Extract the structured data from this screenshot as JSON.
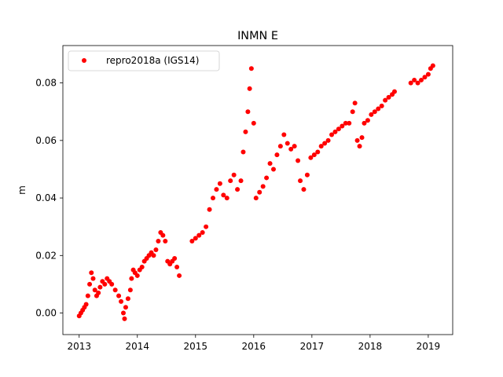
{
  "chart_data": {
    "type": "scatter",
    "title": "INMN E",
    "xlabel": "",
    "ylabel": "m",
    "xlim": [
      2012.72,
      2019.42
    ],
    "ylim": [
      -0.0075,
      0.093
    ],
    "x_ticks": [
      2013,
      2014,
      2015,
      2016,
      2017,
      2018,
      2019
    ],
    "x_tick_labels": [
      "2013",
      "2014",
      "2015",
      "2016",
      "2017",
      "2018",
      "2019"
    ],
    "y_ticks": [
      0.0,
      0.02,
      0.04,
      0.06,
      0.08
    ],
    "y_tick_labels": [
      "0.00",
      "0.02",
      "0.04",
      "0.06",
      "0.08"
    ],
    "grid": false,
    "legend_position": "top-left",
    "marker_color": "#ff0000",
    "series": [
      {
        "name": "repro2018a (IGS14)",
        "color": "#ff0000",
        "points": [
          [
            2013.0,
            -0.001
          ],
          [
            2013.03,
            0.0
          ],
          [
            2013.06,
            0.001
          ],
          [
            2013.09,
            0.002
          ],
          [
            2013.12,
            0.003
          ],
          [
            2013.15,
            0.006
          ],
          [
            2013.18,
            0.01
          ],
          [
            2013.21,
            0.014
          ],
          [
            2013.24,
            0.012
          ],
          [
            2013.27,
            0.008
          ],
          [
            2013.3,
            0.006
          ],
          [
            2013.33,
            0.007
          ],
          [
            2013.36,
            0.009
          ],
          [
            2013.4,
            0.011
          ],
          [
            2013.44,
            0.01
          ],
          [
            2013.48,
            0.012
          ],
          [
            2013.52,
            0.011
          ],
          [
            2013.56,
            0.01
          ],
          [
            2013.62,
            0.008
          ],
          [
            2013.68,
            0.006
          ],
          [
            2013.72,
            0.004
          ],
          [
            2013.76,
            0.0
          ],
          [
            2013.78,
            -0.002
          ],
          [
            2013.8,
            0.002
          ],
          [
            2013.84,
            0.005
          ],
          [
            2013.88,
            0.008
          ],
          [
            2013.9,
            0.012
          ],
          [
            2013.93,
            0.015
          ],
          [
            2013.96,
            0.014
          ],
          [
            2014.0,
            0.013
          ],
          [
            2014.04,
            0.015
          ],
          [
            2014.08,
            0.016
          ],
          [
            2014.12,
            0.018
          ],
          [
            2014.16,
            0.019
          ],
          [
            2014.2,
            0.02
          ],
          [
            2014.24,
            0.021
          ],
          [
            2014.28,
            0.02
          ],
          [
            2014.32,
            0.022
          ],
          [
            2014.36,
            0.025
          ],
          [
            2014.4,
            0.028
          ],
          [
            2014.44,
            0.027
          ],
          [
            2014.48,
            0.025
          ],
          [
            2014.52,
            0.018
          ],
          [
            2014.56,
            0.017
          ],
          [
            2014.6,
            0.018
          ],
          [
            2014.64,
            0.019
          ],
          [
            2014.68,
            0.016
          ],
          [
            2014.72,
            0.013
          ],
          [
            2014.94,
            0.025
          ],
          [
            2015.0,
            0.026
          ],
          [
            2015.06,
            0.027
          ],
          [
            2015.12,
            0.028
          ],
          [
            2015.18,
            0.03
          ],
          [
            2015.24,
            0.036
          ],
          [
            2015.3,
            0.04
          ],
          [
            2015.36,
            0.043
          ],
          [
            2015.42,
            0.045
          ],
          [
            2015.48,
            0.041
          ],
          [
            2015.54,
            0.04
          ],
          [
            2015.6,
            0.046
          ],
          [
            2015.66,
            0.048
          ],
          [
            2015.72,
            0.043
          ],
          [
            2015.78,
            0.046
          ],
          [
            2015.82,
            0.056
          ],
          [
            2015.86,
            0.063
          ],
          [
            2015.9,
            0.07
          ],
          [
            2015.93,
            0.078
          ],
          [
            2015.96,
            0.085
          ],
          [
            2016.0,
            0.066
          ],
          [
            2016.04,
            0.04
          ],
          [
            2016.1,
            0.042
          ],
          [
            2016.16,
            0.044
          ],
          [
            2016.22,
            0.047
          ],
          [
            2016.28,
            0.052
          ],
          [
            2016.34,
            0.05
          ],
          [
            2016.4,
            0.055
          ],
          [
            2016.46,
            0.058
          ],
          [
            2016.52,
            0.062
          ],
          [
            2016.58,
            0.059
          ],
          [
            2016.64,
            0.057
          ],
          [
            2016.7,
            0.058
          ],
          [
            2016.76,
            0.053
          ],
          [
            2016.8,
            0.046
          ],
          [
            2016.86,
            0.043
          ],
          [
            2016.92,
            0.048
          ],
          [
            2016.98,
            0.054
          ],
          [
            2017.04,
            0.055
          ],
          [
            2017.1,
            0.056
          ],
          [
            2017.16,
            0.058
          ],
          [
            2017.22,
            0.059
          ],
          [
            2017.28,
            0.06
          ],
          [
            2017.34,
            0.062
          ],
          [
            2017.4,
            0.063
          ],
          [
            2017.46,
            0.064
          ],
          [
            2017.52,
            0.065
          ],
          [
            2017.58,
            0.066
          ],
          [
            2017.64,
            0.066
          ],
          [
            2017.7,
            0.07
          ],
          [
            2017.74,
            0.073
          ],
          [
            2017.78,
            0.06
          ],
          [
            2017.82,
            0.058
          ],
          [
            2017.86,
            0.061
          ],
          [
            2017.9,
            0.066
          ],
          [
            2017.96,
            0.067
          ],
          [
            2018.02,
            0.069
          ],
          [
            2018.08,
            0.07
          ],
          [
            2018.14,
            0.071
          ],
          [
            2018.2,
            0.072
          ],
          [
            2018.26,
            0.074
          ],
          [
            2018.32,
            0.075
          ],
          [
            2018.38,
            0.076
          ],
          [
            2018.42,
            0.077
          ],
          [
            2018.7,
            0.08
          ],
          [
            2018.76,
            0.081
          ],
          [
            2018.82,
            0.08
          ],
          [
            2018.88,
            0.081
          ],
          [
            2018.94,
            0.082
          ],
          [
            2019.0,
            0.083
          ],
          [
            2019.04,
            0.085
          ],
          [
            2019.08,
            0.086
          ]
        ]
      }
    ]
  }
}
